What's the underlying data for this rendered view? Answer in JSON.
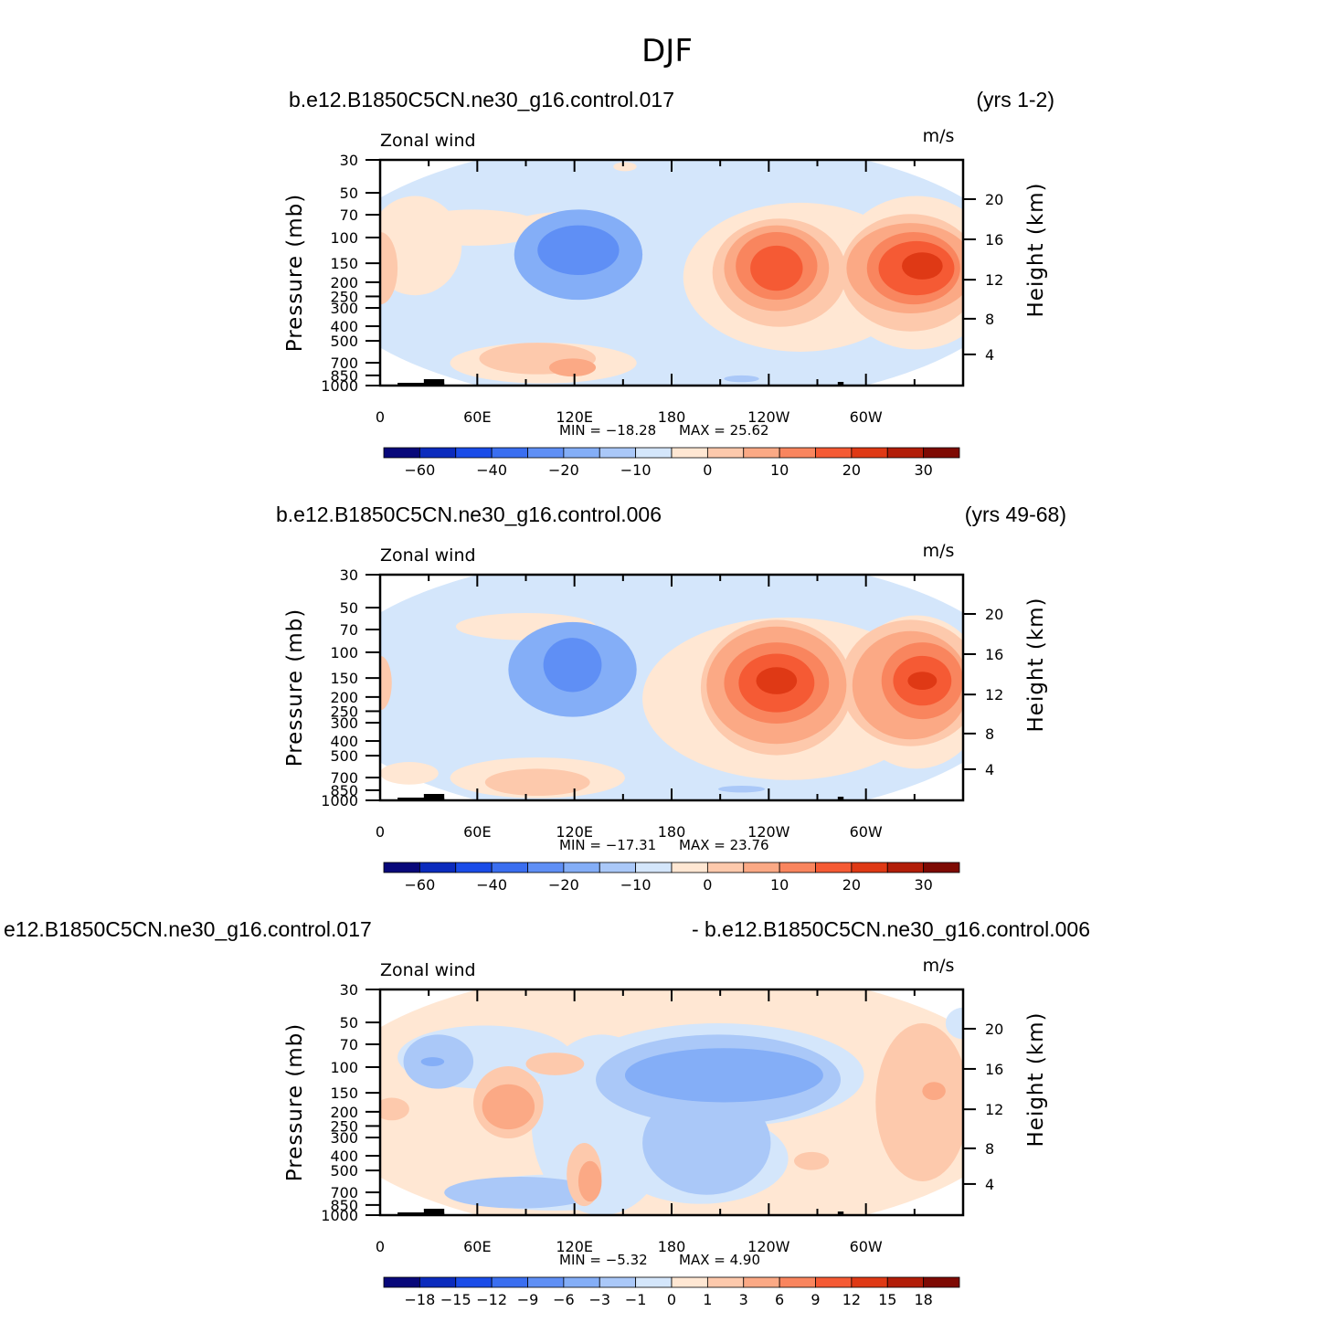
{
  "figure": {
    "title": "DJF"
  },
  "chart_data": [
    {
      "type": "heatmap",
      "case_label": "b.e12.B1850C5CN.ne30_g16.control.017",
      "years_label": "(yrs 1-2)",
      "field_label": "Zonal wind",
      "units_label": "m/s",
      "ylabel": "Pressure (mb)",
      "ylabel_right": "Height (km)",
      "x_ticks": [
        "0",
        "60E",
        "120E",
        "180",
        "120W",
        "60W"
      ],
      "y_ticks": [
        "30",
        "50",
        "70",
        "100",
        "150",
        "200",
        "250",
        "300",
        "400",
        "500",
        "700",
        "850",
        "1000"
      ],
      "y_right_ticks": [
        "20",
        "16",
        "12",
        "8",
        "4"
      ],
      "min_label": "MIN =  −18.28",
      "max_label": "MAX =  25.62",
      "min": -18.28,
      "max": 25.62,
      "colorbar_labels": [
        "−60",
        "−40",
        "−20",
        "−10",
        "0",
        "10",
        "20",
        "30"
      ],
      "colorbar_levels": [
        -70,
        -60,
        -50,
        -40,
        -30,
        -20,
        -15,
        -10,
        -5,
        0,
        5,
        10,
        15,
        20,
        25,
        30,
        35
      ]
    },
    {
      "type": "heatmap",
      "case_label": "b.e12.B1850C5CN.ne30_g16.control.006",
      "years_label": "(yrs 49-68)",
      "field_label": "Zonal wind",
      "units_label": "m/s",
      "ylabel": "Pressure (mb)",
      "ylabel_right": "Height (km)",
      "x_ticks": [
        "0",
        "60E",
        "120E",
        "180",
        "120W",
        "60W"
      ],
      "y_ticks": [
        "30",
        "50",
        "70",
        "100",
        "150",
        "200",
        "250",
        "300",
        "400",
        "500",
        "700",
        "850",
        "1000"
      ],
      "y_right_ticks": [
        "20",
        "16",
        "12",
        "8",
        "4"
      ],
      "min_label": "MIN =  −17.31",
      "max_label": "MAX =  23.76",
      "min": -17.31,
      "max": 23.76,
      "colorbar_labels": [
        "−60",
        "−40",
        "−20",
        "−10",
        "0",
        "10",
        "20",
        "30"
      ],
      "colorbar_levels": [
        -70,
        -60,
        -50,
        -40,
        -30,
        -20,
        -15,
        -10,
        -5,
        0,
        5,
        10,
        15,
        20,
        25,
        30,
        35
      ]
    },
    {
      "type": "heatmap",
      "case_label": "e12.B1850C5CN.ne30_g16.control.017",
      "years_label": "- b.e12.B1850C5CN.ne30_g16.control.006",
      "field_label": "Zonal wind",
      "units_label": "m/s",
      "ylabel": "Pressure (mb)",
      "ylabel_right": "Height (km)",
      "x_ticks": [
        "0",
        "60E",
        "120E",
        "180",
        "120W",
        "60W"
      ],
      "y_ticks": [
        "30",
        "50",
        "70",
        "100",
        "150",
        "200",
        "250",
        "300",
        "400",
        "500",
        "700",
        "850",
        "1000"
      ],
      "y_right_ticks": [
        "20",
        "16",
        "12",
        "8",
        "4"
      ],
      "min_label": "MIN =  −5.32",
      "max_label": "MAX =  4.90",
      "min": -5.32,
      "max": 4.9,
      "colorbar_labels": [
        "−18",
        "−15",
        "−12",
        "−9",
        "−6",
        "−3",
        "−1",
        "0",
        "1",
        "3",
        "6",
        "9",
        "12",
        "15",
        "18"
      ],
      "colorbar_levels": [
        -21,
        -18,
        -15,
        -12,
        -9,
        -6,
        -3,
        -1,
        0,
        1,
        3,
        6,
        9,
        12,
        15,
        18,
        21
      ]
    }
  ],
  "palette": [
    "#08087a",
    "#0b2bbd",
    "#1a4ce8",
    "#3a6ef0",
    "#5f8ff5",
    "#84aef7",
    "#aac8f8",
    "#d4e6fb",
    "#ffe7d3",
    "#fdc9ac",
    "#fba985",
    "#f9855e",
    "#f55a34",
    "#df3915",
    "#b21d08",
    "#7e0a03"
  ]
}
